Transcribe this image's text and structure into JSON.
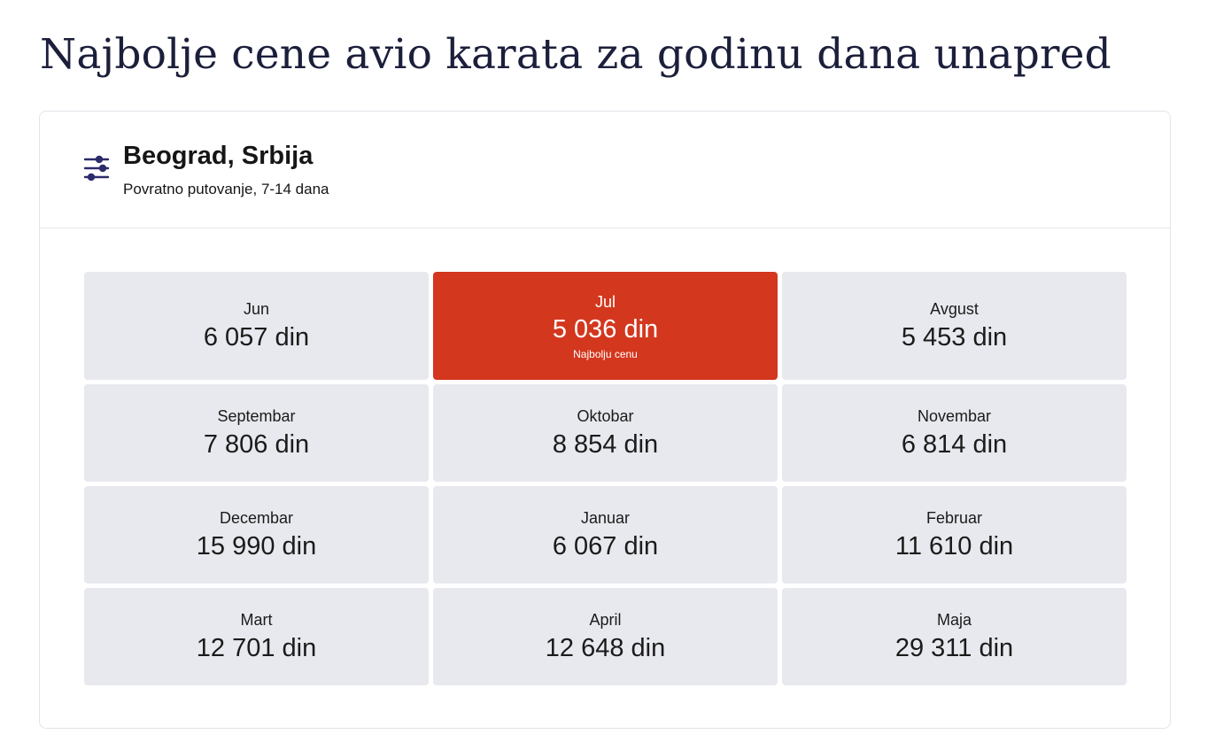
{
  "page": {
    "title": "Najbolje cene avio karata za godinu dana unapred"
  },
  "header": {
    "origin": "Beograd, Srbija",
    "trip_type": "Povratno putovanje, 7-14 dana",
    "filter_icon": "sliders-icon",
    "icon_color": "#2c2b6b"
  },
  "months": [
    {
      "month": "Jun",
      "price": "6 057 din"
    },
    {
      "month": "Jul",
      "price": "5 036 din",
      "best": true,
      "best_label": "Najbolju cenu"
    },
    {
      "month": "Avgust",
      "price": "5 453 din"
    },
    {
      "month": "Septembar",
      "price": "7 806 din"
    },
    {
      "month": "Oktobar",
      "price": "8 854 din"
    },
    {
      "month": "Novembar",
      "price": "6 814 din"
    },
    {
      "month": "Decembar",
      "price": "15 990 din"
    },
    {
      "month": "Januar",
      "price": "6 067 din"
    },
    {
      "month": "Februar",
      "price": "11 610 din"
    },
    {
      "month": "Mart",
      "price": "12 701 din"
    },
    {
      "month": "April",
      "price": "12 648 din"
    },
    {
      "month": "Maja",
      "price": "29 311 din"
    }
  ],
  "colors": {
    "best_price_bg": "#d3371e",
    "cell_bg": "#e8e9ee",
    "title_color": "#1b1f3b"
  }
}
